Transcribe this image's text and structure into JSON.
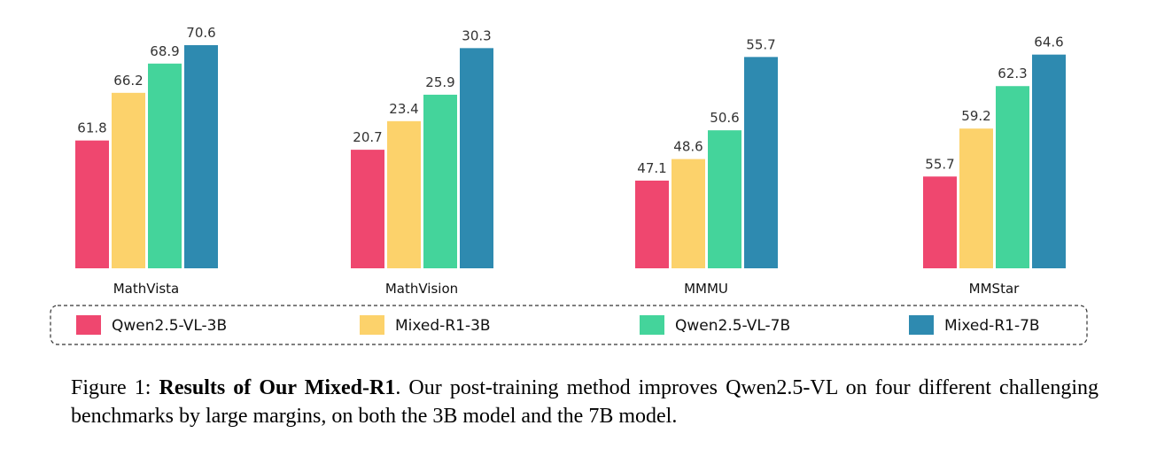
{
  "chart_data": {
    "type": "bar",
    "categories": [
      "MathVista",
      "MathVision",
      "MMMU",
      "MMStar"
    ],
    "series": [
      {
        "name": "Qwen2.5-VL-3B",
        "values": [
          61.8,
          20.7,
          47.1,
          55.7
        ],
        "color": "#ef476f"
      },
      {
        "name": "Mixed-R1-3B",
        "values": [
          66.2,
          23.4,
          48.6,
          59.2
        ],
        "color": "#fcd26b"
      },
      {
        "name": "Qwen2.5-VL-7B",
        "values": [
          68.9,
          25.9,
          50.6,
          62.3
        ],
        "color": "#44d49b"
      },
      {
        "name": "Mixed-R1-7B",
        "values": [
          70.6,
          30.3,
          55.7,
          64.6
        ],
        "color": "#2e8ab0"
      }
    ],
    "ylim_per_category": [
      [
        50,
        71.5
      ],
      [
        9.5,
        31.5
      ],
      [
        41,
        57.2
      ],
      [
        49,
        66.0
      ]
    ],
    "legend_position": "bottom",
    "grid": false
  },
  "caption": {
    "prefix": "Figure 1:",
    "bold": "Results of Our Mixed-R1",
    "text": ". Our post-training method improves Qwen2.5-VL on four different challenging benchmarks by large margins, on both the 3B model and the 7B model."
  }
}
